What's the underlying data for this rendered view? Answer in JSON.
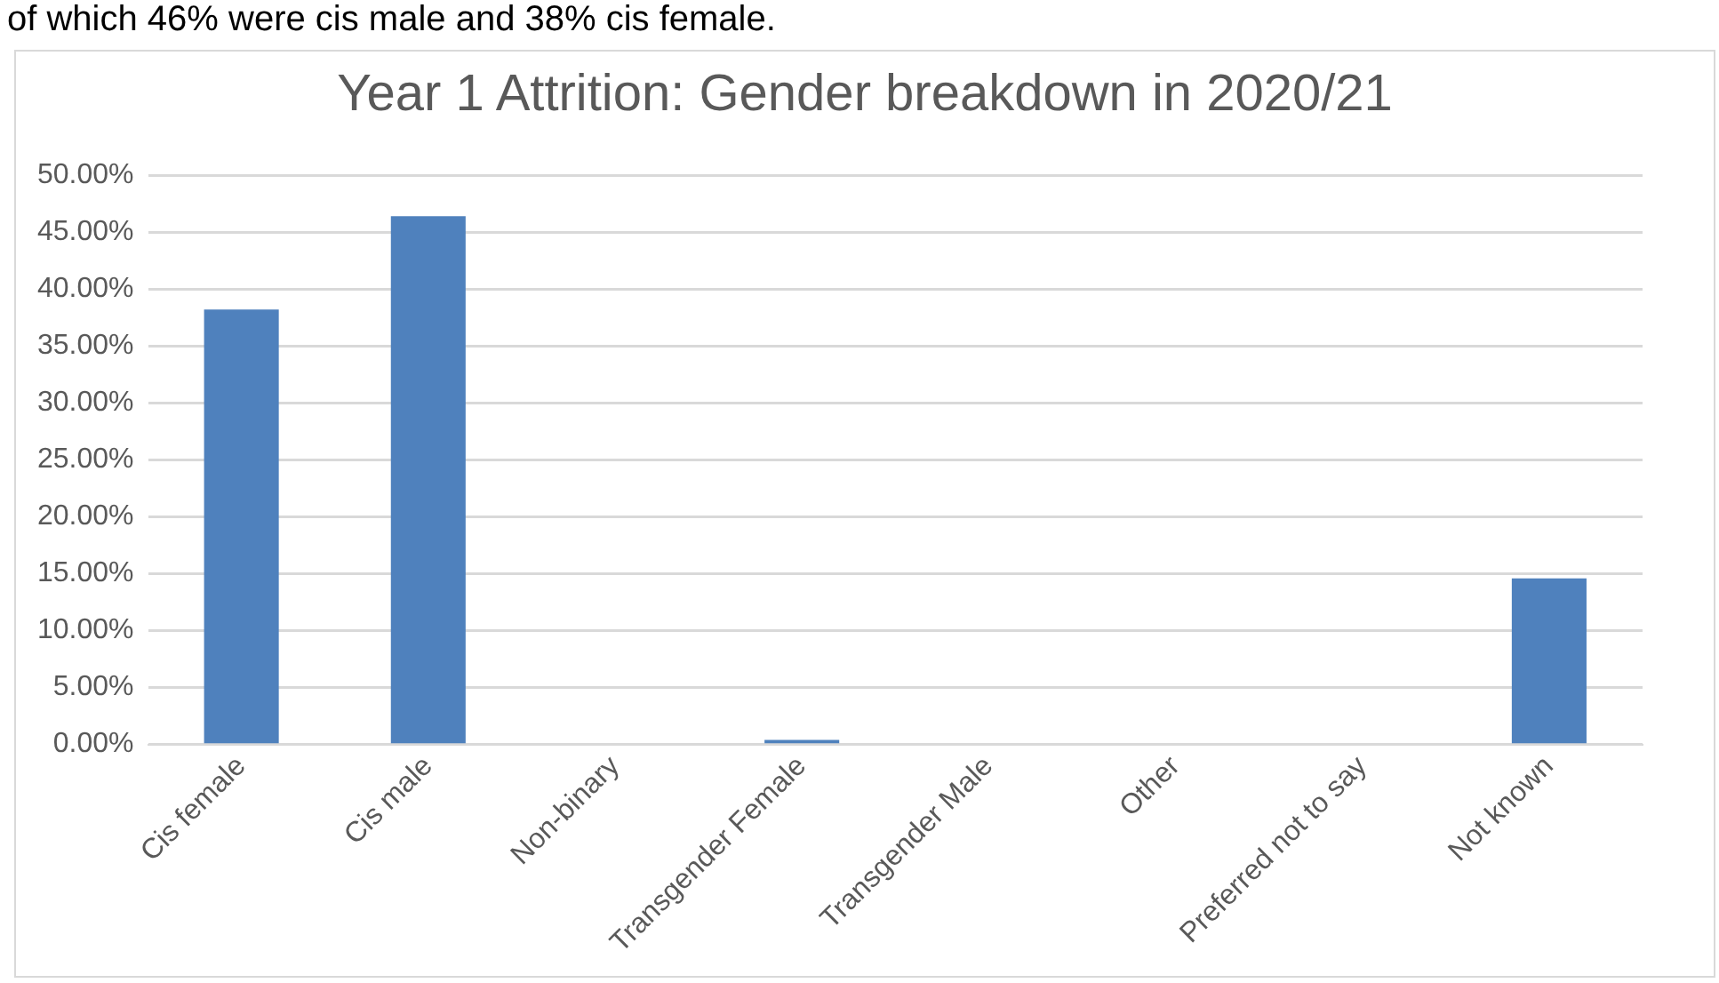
{
  "chart_data": {
    "type": "bar",
    "title": "Year 1 Attrition: Gender breakdown in 2020/21",
    "annotations": [
      "of which 46% were cis male and 38% cis female."
    ],
    "categories": [
      "Cis female",
      "Cis male",
      "Non-binary",
      "Transgender Female",
      "Transgender Male",
      "Other",
      "Preferred not to say",
      "Not known"
    ],
    "values": [
      38.2,
      46.4,
      0,
      0.4,
      0,
      0,
      0,
      14.6
    ],
    "color": "#4f81bd",
    "ylim": [
      0,
      50
    ],
    "yticks": [
      {
        "value": 0,
        "label": "0.00%"
      },
      {
        "value": 5,
        "label": "5.00%"
      },
      {
        "value": 10,
        "label": "10.00%"
      },
      {
        "value": 15,
        "label": "15.00%"
      },
      {
        "value": 20,
        "label": "20.00%"
      },
      {
        "value": 25,
        "label": "25.00%"
      },
      {
        "value": 30,
        "label": "30.00%"
      },
      {
        "value": 35,
        "label": "35.00%"
      },
      {
        "value": 40,
        "label": "40.00%"
      },
      {
        "value": 45,
        "label": "45.00%"
      },
      {
        "value": 50,
        "label": "50.00%"
      }
    ],
    "grid": "y"
  }
}
